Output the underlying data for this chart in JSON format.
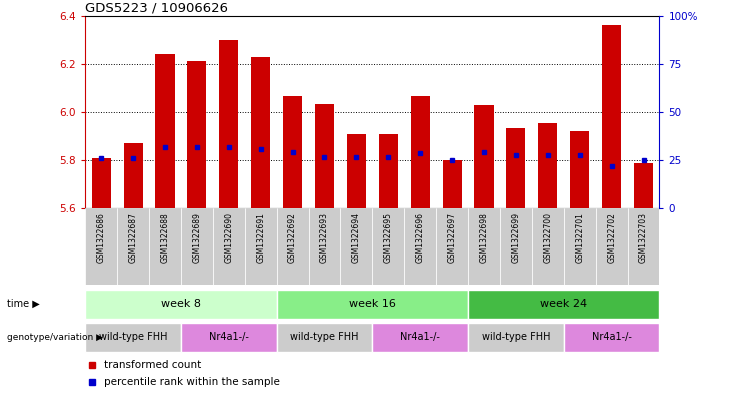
{
  "title": "GDS5223 / 10906626",
  "samples": [
    "GSM1322686",
    "GSM1322687",
    "GSM1322688",
    "GSM1322689",
    "GSM1322690",
    "GSM1322691",
    "GSM1322692",
    "GSM1322693",
    "GSM1322694",
    "GSM1322695",
    "GSM1322696",
    "GSM1322697",
    "GSM1322698",
    "GSM1322699",
    "GSM1322700",
    "GSM1322701",
    "GSM1322702",
    "GSM1322703"
  ],
  "transformed_count": [
    5.81,
    5.87,
    6.24,
    6.21,
    6.3,
    6.23,
    6.065,
    6.035,
    5.91,
    5.91,
    6.065,
    5.8,
    6.03,
    5.935,
    5.955,
    5.92,
    6.36,
    5.79
  ],
  "percentile_y": [
    5.81,
    5.81,
    5.855,
    5.855,
    5.855,
    5.845,
    5.835,
    5.815,
    5.815,
    5.815,
    5.83,
    5.8,
    5.835,
    5.82,
    5.82,
    5.82,
    5.775,
    5.8
  ],
  "ylim": [
    5.6,
    6.4
  ],
  "yticks_left": [
    5.6,
    5.8,
    6.0,
    6.2,
    6.4
  ],
  "yticks_right": [
    0,
    25,
    50,
    75,
    100
  ],
  "bar_color": "#cc0000",
  "dot_color": "#0000cc",
  "bar_width": 0.6,
  "base": 5.6,
  "time_groups": [
    {
      "label": "week 8",
      "start": 0,
      "end": 6,
      "color": "#ccffcc"
    },
    {
      "label": "week 16",
      "start": 6,
      "end": 12,
      "color": "#88ee88"
    },
    {
      "label": "week 24",
      "start": 12,
      "end": 18,
      "color": "#44bb44"
    }
  ],
  "genotype_groups": [
    {
      "label": "wild-type FHH",
      "start": 0,
      "end": 3,
      "color": "#cccccc"
    },
    {
      "label": "Nr4a1-/-",
      "start": 3,
      "end": 6,
      "color": "#dd88dd"
    },
    {
      "label": "wild-type FHH",
      "start": 6,
      "end": 9,
      "color": "#cccccc"
    },
    {
      "label": "Nr4a1-/-",
      "start": 9,
      "end": 12,
      "color": "#dd88dd"
    },
    {
      "label": "wild-type FHH",
      "start": 12,
      "end": 15,
      "color": "#cccccc"
    },
    {
      "label": "Nr4a1-/-",
      "start": 15,
      "end": 18,
      "color": "#dd88dd"
    }
  ],
  "legend_items": [
    {
      "label": "transformed count",
      "color": "#cc0000"
    },
    {
      "label": "percentile rank within the sample",
      "color": "#0000cc"
    }
  ],
  "bg_color": "#ffffff",
  "left_axis_color": "#cc0000",
  "right_axis_color": "#0000cc",
  "sample_bg_color": "#cccccc"
}
